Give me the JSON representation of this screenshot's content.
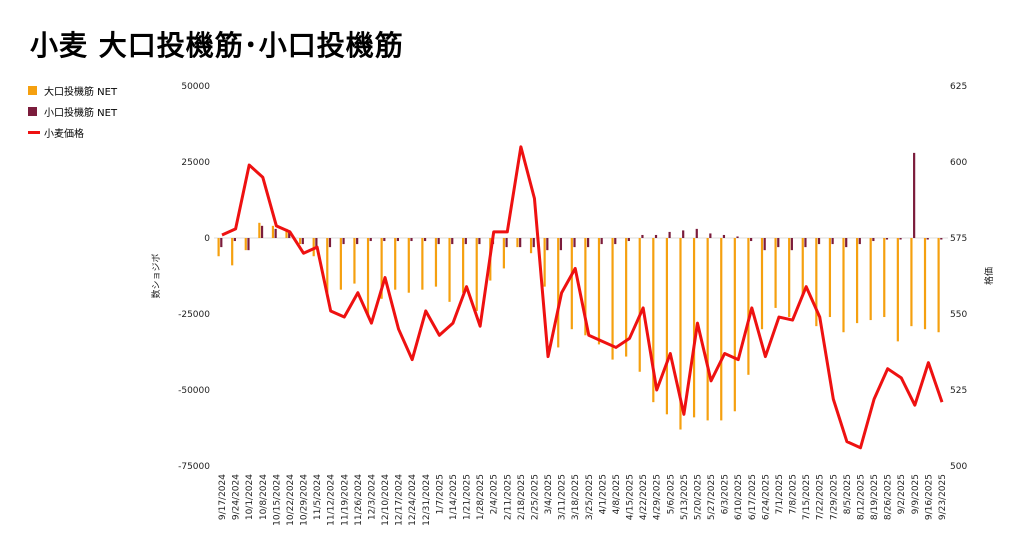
{
  "title": "小麦 大口投機筋･小口投機筋",
  "chart_data": {
    "type": "bar+line",
    "title": "小麦 大口投機筋･小口投機筋",
    "ylabel_left": "数ショジボ",
    "ylabel_right": "格価",
    "ylim_left": [
      -75000,
      50000
    ],
    "ylim_right": [
      500,
      625
    ],
    "yticks_left": [
      "50000",
      "25000",
      "0",
      "-25000",
      "-50000",
      "-75000"
    ],
    "yticks_right": [
      "625",
      "600",
      "575",
      "550",
      "525",
      "500"
    ],
    "legend_position": "left",
    "grid": false,
    "colors": {
      "large": "#f5a00f",
      "small": "#7b1c3c",
      "price": "#ee1111"
    },
    "x": [
      "9/17/2024",
      "9/24/2024",
      "10/1/2024",
      "10/8/2024",
      "10/15/2024",
      "10/22/2024",
      "10/29/2024",
      "11/5/2024",
      "11/12/2024",
      "11/19/2024",
      "11/26/2024",
      "12/3/2024",
      "12/10/2024",
      "12/17/2024",
      "12/24/2024",
      "12/31/2024",
      "1/7/2025",
      "1/14/2025",
      "1/21/2025",
      "1/28/2025",
      "2/4/2025",
      "2/11/2025",
      "2/18/2025",
      "2/25/2025",
      "3/4/2025",
      "3/11/2025",
      "3/18/2025",
      "3/25/2025",
      "4/1/2025",
      "4/8/2025",
      "4/15/2025",
      "4/22/2025",
      "4/29/2025",
      "5/6/2025",
      "5/13/2025",
      "5/20/2025",
      "5/27/2025",
      "6/3/2025",
      "6/10/2025",
      "6/17/2025",
      "6/24/2025",
      "7/1/2025",
      "7/8/2025",
      "7/15/2025",
      "7/22/2025",
      "7/29/2025",
      "8/5/2025",
      "8/12/2025",
      "8/19/2025",
      "8/26/2025",
      "9/2/2025",
      "9/9/2025",
      "9/16/2025",
      "9/23/2025"
    ],
    "xtick_labels": [
      "9/17/2024",
      "9/24/2024",
      "10/1/2024",
      "10/8/2024",
      "10/15/2024",
      "10/22/2024",
      "10/29/2024",
      "11/5/2024",
      "11/12/2024",
      "11/19/2024",
      "11/26/2024",
      "12/3/2024",
      "12/10/2024",
      "12/17/2024",
      "12/24/2024",
      "12/31/2024",
      "1/7/2025",
      "1/14/2025",
      "1/21/2025",
      "1/28/2025",
      "2/4/2025",
      "2/11/2025",
      "2/18/2025",
      "2/25/2025",
      "3/4/2025",
      "3/11/2025",
      "3/18/2025",
      "3/25/2025",
      "4/1/2025",
      "4/8/2025",
      "4/15/2025",
      "4/22/2025",
      "4/29/2025",
      "5/6/2025",
      "5/13/2025",
      "5/20/2025",
      "5/27/2025",
      "6/3/2025",
      "6/10/2025",
      "6/17/2025",
      "6/24/2025",
      "7/1/2025",
      "7/8/2025",
      "7/15/2025",
      "7/22/2025",
      "7/29/2025",
      "8/5/2025",
      "8/12/2025",
      "8/19/2025",
      "8/26/2025",
      "9/2/2025",
      "9/9/2025",
      "9/16/2025",
      "9/23/2025"
    ],
    "series": [
      {
        "name": "大口投機筋  NET",
        "type": "bar",
        "axis": "left",
        "color": "#f5a00f",
        "values": [
          -6000,
          -9000,
          -4000,
          5000,
          4000,
          3000,
          -2000,
          -6000,
          -18000,
          -17000,
          -15000,
          -26000,
          -20000,
          -17000,
          -18000,
          -17000,
          -16000,
          -21000,
          -18000,
          -24000,
          -14000,
          -10000,
          -3000,
          -5000,
          -16000,
          -36000,
          -30000,
          -32000,
          -35000,
          -40000,
          -39000,
          -44000,
          -54000,
          -58000,
          -63000,
          -59000,
          -60000,
          -60000,
          -57000,
          -45000,
          -30000,
          -23000,
          -26000,
          -19000,
          -29000,
          -26000,
          -31000,
          -28000,
          -27000,
          -26000,
          -34000,
          -29000,
          -30000,
          -31000
        ]
      },
      {
        "name": "小口投機筋  NET",
        "type": "bar",
        "axis": "left",
        "color": "#7b1c3c",
        "values": [
          -3000,
          -1000,
          -4000,
          4000,
          3000,
          2000,
          -2000,
          -3000,
          -3000,
          -2000,
          -2000,
          -1000,
          -1000,
          -1000,
          -1000,
          -1000,
          -2000,
          -2000,
          -2000,
          -2000,
          -2000,
          -3000,
          -3000,
          -3000,
          -4000,
          -4000,
          -3000,
          -3000,
          -2000,
          -2000,
          -1000,
          1000,
          1000,
          2000,
          2500,
          3000,
          1500,
          1000,
          500,
          -1000,
          -4000,
          -3000,
          -4000,
          -3000,
          -2000,
          -2000,
          -3000,
          -2000,
          -1000,
          -500,
          -500,
          28000,
          -500,
          -500
        ]
      },
      {
        "name": "小麦価格",
        "type": "line",
        "axis": "right",
        "color": "#ee1111",
        "values": [
          576,
          578,
          599,
          595,
          579,
          577,
          570,
          572,
          551,
          549,
          557,
          547,
          562,
          545,
          535,
          551,
          543,
          547,
          559,
          546,
          577,
          577,
          605,
          588,
          536,
          557,
          565,
          543,
          541,
          539,
          542,
          552,
          525,
          537,
          517,
          547,
          528,
          537,
          535,
          552,
          536,
          549,
          548,
          559,
          549,
          522,
          508,
          506,
          522,
          532,
          529,
          520,
          534,
          521
        ]
      }
    ]
  }
}
